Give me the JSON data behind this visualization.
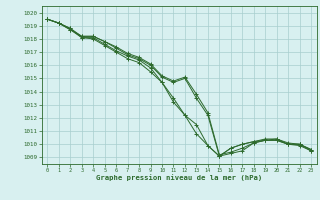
{
  "x": [
    0,
    1,
    2,
    3,
    4,
    5,
    6,
    7,
    8,
    9,
    10,
    11,
    12,
    13,
    14,
    15,
    16,
    17,
    18,
    19,
    20,
    21,
    22,
    23
  ],
  "lines": [
    [
      1019.5,
      1019.2,
      1018.8,
      1018.1,
      1018.1,
      1017.6,
      1017.1,
      1016.7,
      1016.4,
      1015.8,
      1014.7,
      1013.5,
      1012.2,
      1010.8,
      1009.9,
      1009.1,
      1009.7,
      1010.0,
      1010.2,
      1010.3,
      1010.3,
      1010.0,
      1009.9,
      1009.5
    ],
    [
      1019.5,
      1019.2,
      1018.7,
      1018.1,
      1018.0,
      1017.5,
      1017.0,
      1016.5,
      1016.2,
      1015.5,
      1014.7,
      1013.2,
      1012.2,
      1011.5,
      1009.9,
      1009.1,
      1009.7,
      1010.0,
      1010.2,
      1010.4,
      1010.4,
      1010.0,
      1010.0,
      1009.6
    ],
    [
      1019.5,
      1019.2,
      1018.7,
      1018.2,
      1018.2,
      1017.8,
      1017.3,
      1016.8,
      1016.5,
      1016.0,
      1015.1,
      1014.7,
      1015.0,
      1013.5,
      1012.2,
      1009.1,
      1009.3,
      1009.5,
      1010.1,
      1010.3,
      1010.3,
      1010.0,
      1010.0,
      1009.5
    ],
    [
      1019.5,
      1019.2,
      1018.8,
      1018.2,
      1018.2,
      1017.8,
      1017.4,
      1016.9,
      1016.6,
      1016.1,
      1015.2,
      1014.8,
      1015.1,
      1013.8,
      1012.4,
      1009.2,
      1009.4,
      1009.7,
      1010.1,
      1010.3,
      1010.4,
      1010.1,
      1010.0,
      1009.6
    ]
  ],
  "line_color": "#2d6a2d",
  "bg_color": "#d8f0f0",
  "grid_color": "#a8cece",
  "xlabel": "Graphe pression niveau de la mer (hPa)",
  "ylim": [
    1008.5,
    1020.5
  ],
  "xlim": [
    -0.5,
    23.5
  ],
  "yticks": [
    1009,
    1010,
    1011,
    1012,
    1013,
    1014,
    1015,
    1016,
    1017,
    1018,
    1019,
    1020
  ],
  "xticks": [
    0,
    1,
    2,
    3,
    4,
    5,
    6,
    7,
    8,
    9,
    10,
    11,
    12,
    13,
    14,
    15,
    16,
    17,
    18,
    19,
    20,
    21,
    22,
    23
  ]
}
